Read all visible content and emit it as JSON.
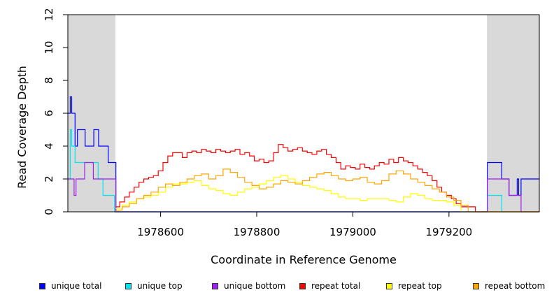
{
  "chart_data": {
    "type": "line",
    "xlabel": "Coordinate in Reference Genome",
    "ylabel": "Read Coverage Depth",
    "xlim": [
      1978407,
      1979388
    ],
    "ylim": [
      0,
      12
    ],
    "x_ticks": [
      1978600,
      1978800,
      1979000,
      1979200
    ],
    "y_ticks": [
      0,
      2,
      4,
      6,
      8,
      10,
      12
    ],
    "shaded_regions": [
      [
        1978407,
        1978506
      ],
      [
        1979279,
        1979388
      ]
    ],
    "colors": {
      "unique total": "#0000ff",
      "unique top": "#00e5ee",
      "unique bottom": "#a020f0",
      "repeat total": "#ff0000",
      "repeat top": "#ffff00",
      "repeat bottom": "#ffa500",
      "shade": "#d9d9d9"
    },
    "series": [
      {
        "name": "unique total",
        "x": [
          1978407,
          1978412,
          1978415,
          1978422,
          1978427,
          1978428,
          1978442,
          1978443,
          1978461,
          1978470,
          1978471,
          1978491,
          1978492,
          1978504,
          1978507,
          1979279,
          1979280,
          1979310,
          1979325,
          1979327,
          1979342,
          1979345,
          1979350,
          1979388
        ],
        "values": [
          6,
          7,
          6,
          4,
          5,
          5,
          5,
          4,
          5,
          5,
          4,
          3,
          3,
          3,
          0,
          0,
          3,
          2,
          1,
          1,
          2,
          1,
          2,
          2
        ]
      },
      {
        "name": "unique top",
        "x": [
          1978407,
          1978412,
          1978415,
          1978422,
          1978440,
          1978470,
          1978480,
          1978490,
          1978504,
          1978507,
          1979279,
          1979280,
          1979310,
          1979388
        ],
        "values": [
          2,
          5,
          4,
          3,
          3,
          2,
          1,
          1,
          0,
          0,
          0,
          1,
          0,
          0
        ]
      },
      {
        "name": "unique bottom",
        "x": [
          1978407,
          1978420,
          1978424,
          1978442,
          1978460,
          1978504,
          1978507,
          1979279,
          1979280,
          1979310,
          1979325,
          1979343,
          1979350,
          1979388
        ],
        "values": [
          2,
          1,
          2,
          3,
          2,
          2,
          0,
          0,
          2,
          2,
          1,
          1,
          0,
          0
        ]
      },
      {
        "name": "repeat total",
        "x": [
          1978507,
          1978515,
          1978525,
          1978535,
          1978545,
          1978555,
          1978565,
          1978575,
          1978585,
          1978595,
          1978605,
          1978615,
          1978625,
          1978635,
          1978645,
          1978655,
          1978665,
          1978675,
          1978685,
          1978695,
          1978705,
          1978715,
          1978725,
          1978735,
          1978745,
          1978755,
          1978765,
          1978775,
          1978785,
          1978795,
          1978805,
          1978815,
          1978825,
          1978835,
          1978845,
          1978855,
          1978865,
          1978875,
          1978885,
          1978895,
          1978905,
          1978915,
          1978925,
          1978935,
          1978945,
          1978955,
          1978965,
          1978975,
          1978985,
          1978995,
          1979005,
          1979015,
          1979025,
          1979035,
          1979045,
          1979055,
          1979065,
          1979075,
          1979085,
          1979095,
          1979105,
          1979115,
          1979125,
          1979135,
          1979145,
          1979155,
          1979165,
          1979175,
          1979185,
          1979195,
          1979205,
          1979215,
          1979225,
          1979235,
          1979255
        ],
        "values": [
          0.3,
          0.6,
          0.9,
          1.2,
          1.5,
          1.8,
          2.0,
          2.1,
          2.2,
          2.5,
          3.0,
          3.4,
          3.6,
          3.6,
          3.3,
          3.6,
          3.7,
          3.6,
          3.8,
          3.7,
          3.6,
          3.8,
          3.7,
          3.6,
          3.7,
          3.8,
          3.5,
          3.6,
          3.4,
          3.1,
          3.2,
          3.0,
          3.1,
          3.6,
          4.1,
          3.9,
          3.7,
          3.8,
          3.9,
          3.7,
          3.6,
          3.5,
          3.7,
          3.8,
          3.5,
          3.3,
          3.0,
          2.6,
          2.8,
          2.7,
          2.6,
          2.9,
          2.7,
          2.6,
          2.8,
          3.0,
          2.9,
          3.2,
          3.0,
          3.3,
          3.1,
          3.0,
          2.8,
          2.6,
          2.4,
          2.2,
          1.9,
          1.5,
          1.2,
          1.0,
          0.8,
          0.5,
          0.3,
          0.3,
          0
        ]
      },
      {
        "name": "repeat top",
        "x": [
          1978507,
          1978520,
          1978535,
          1978550,
          1978565,
          1978580,
          1978595,
          1978610,
          1978625,
          1978640,
          1978655,
          1978670,
          1978685,
          1978700,
          1978715,
          1978730,
          1978745,
          1978760,
          1978775,
          1978790,
          1978805,
          1978820,
          1978835,
          1978850,
          1978865,
          1978880,
          1978895,
          1978910,
          1978925,
          1978940,
          1978955,
          1978970,
          1978985,
          1979000,
          1979015,
          1979030,
          1979045,
          1979060,
          1979075,
          1979090,
          1979105,
          1979120,
          1979135,
          1979150,
          1979165,
          1979180,
          1979195,
          1979210,
          1979225
        ],
        "values": [
          0.2,
          0.4,
          0.6,
          0.8,
          0.9,
          1.0,
          1.2,
          1.5,
          1.7,
          1.7,
          1.8,
          1.9,
          1.6,
          1.4,
          1.3,
          1.1,
          1.0,
          1.2,
          1.4,
          1.5,
          1.7,
          1.9,
          2.1,
          2.2,
          2.0,
          1.8,
          1.6,
          1.5,
          1.4,
          1.3,
          1.1,
          0.9,
          0.8,
          0.8,
          0.7,
          0.8,
          0.8,
          0.8,
          0.7,
          0.6,
          0.9,
          1.1,
          1.0,
          0.8,
          0.7,
          0.7,
          0.6,
          0.4,
          0
        ]
      },
      {
        "name": "repeat bottom",
        "x": [
          1978507,
          1978520,
          1978535,
          1978550,
          1978565,
          1978580,
          1978595,
          1978610,
          1978625,
          1978640,
          1978655,
          1978670,
          1978685,
          1978700,
          1978715,
          1978730,
          1978745,
          1978760,
          1978775,
          1978790,
          1978805,
          1978820,
          1978835,
          1978850,
          1978865,
          1978880,
          1978895,
          1978910,
          1978925,
          1978940,
          1978955,
          1978970,
          1978985,
          1979000,
          1979015,
          1979030,
          1979045,
          1979060,
          1979075,
          1979090,
          1979105,
          1979120,
          1979135,
          1979150,
          1979165,
          1979180,
          1979195,
          1979210,
          1979225,
          1979240
        ],
        "values": [
          0.1,
          0.3,
          0.5,
          0.8,
          1.0,
          1.2,
          1.5,
          1.7,
          1.6,
          1.8,
          2.0,
          2.2,
          2.3,
          2.0,
          2.2,
          2.6,
          2.4,
          2.1,
          1.8,
          1.6,
          1.4,
          1.5,
          1.7,
          1.9,
          1.8,
          1.7,
          1.9,
          2.1,
          2.3,
          2.4,
          2.2,
          2.0,
          1.9,
          2.0,
          2.1,
          1.8,
          1.7,
          1.9,
          2.3,
          2.5,
          2.3,
          2.0,
          1.8,
          1.6,
          1.4,
          1.2,
          0.9,
          0.7,
          0.4,
          0
        ]
      }
    ],
    "legend_position": "bottom"
  }
}
